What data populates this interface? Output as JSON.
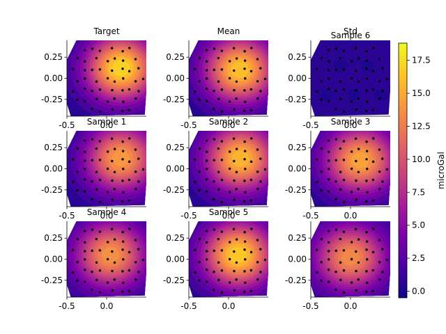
{
  "chart_data": {
    "type": "heatmap",
    "colormap": "plasma",
    "panel_x_range": [
      -0.5,
      0.5
    ],
    "panel_y_range": [
      -0.45,
      0.45
    ],
    "x_ticks": [
      {
        "value": -0.5,
        "label": "-0.5"
      },
      {
        "value": 0.0,
        "label": "0.0"
      }
    ],
    "y_ticks": [
      {
        "value": 0.25,
        "label": "0.25"
      },
      {
        "value": 0.0,
        "label": "0.00"
      },
      {
        "value": -0.25,
        "label": "-0.25"
      }
    ],
    "panels": [
      {
        "title": "Target",
        "peak": 18.0,
        "cx": 0.18,
        "cy": 0.12
      },
      {
        "title": "Mean",
        "peak": 17.0,
        "cx": 0.14,
        "cy": 0.1
      },
      {
        "title": "Std",
        "overlay_title": "Sample 6",
        "peak": 3.0,
        "cx": 0.05,
        "cy": 0.0,
        "std": true
      },
      {
        "title": "Sample 1",
        "peak": 15.0,
        "cx": 0.18,
        "cy": 0.12
      },
      {
        "title": "Sample 2",
        "peak": 16.5,
        "cx": 0.15,
        "cy": 0.12
      },
      {
        "title": "Sample 3",
        "peak": 15.5,
        "cx": 0.12,
        "cy": 0.1
      },
      {
        "title": "Sample 4",
        "peak": 14.5,
        "cx": 0.05,
        "cy": 0.05
      },
      {
        "title": "Sample 5",
        "peak": 17.5,
        "cx": 0.12,
        "cy": 0.05
      },
      {
        "title": "",
        "peak": 14.0,
        "cx": 0.0,
        "cy": 0.02
      }
    ],
    "colorbar": {
      "label": "microGal",
      "min": -0.5,
      "max": 18.8,
      "ticks": [
        {
          "value": 0.0,
          "label": "0.0"
        },
        {
          "value": 2.5,
          "label": "2.5"
        },
        {
          "value": 5.0,
          "label": "5.0"
        },
        {
          "value": 7.5,
          "label": "7.5"
        },
        {
          "value": 10.0,
          "label": "10.0"
        },
        {
          "value": 12.5,
          "label": "12.5"
        },
        {
          "value": 15.0,
          "label": "15.0"
        },
        {
          "value": 17.5,
          "label": "17.5"
        }
      ]
    }
  }
}
